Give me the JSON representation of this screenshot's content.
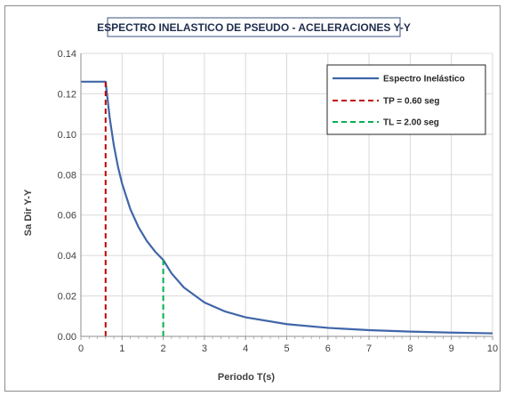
{
  "chart_data": {
    "type": "line",
    "title": "ESPECTRO INELASTICO DE PSEUDO - ACELERACIONES Y-Y",
    "xlabel": "Periodo T(s)",
    "ylabel": "Sa Dir Y-Y",
    "xlim": [
      0,
      10
    ],
    "ylim": [
      0,
      0.14
    ],
    "x_ticks": [
      "0",
      "1",
      "2",
      "3",
      "4",
      "5",
      "6",
      "7",
      "8",
      "9",
      "10"
    ],
    "y_ticks": [
      "0.00",
      "0.02",
      "0.04",
      "0.06",
      "0.08",
      "0.10",
      "0.12",
      "0.14"
    ],
    "grid": true,
    "legend_position": "top-right",
    "series": [
      {
        "name": "Espectro Inelástico",
        "color": "#4066a8",
        "style": "solid",
        "x": [
          0,
          0.6,
          0.7,
          0.8,
          0.9,
          1.0,
          1.2,
          1.4,
          1.6,
          1.8,
          2.0,
          2.2,
          2.5,
          3.0,
          3.5,
          4.0,
          5.0,
          6.0,
          7.0,
          8.0,
          9.0,
          10.0
        ],
        "y": [
          0.126,
          0.126,
          0.108,
          0.0945,
          0.084,
          0.0756,
          0.063,
          0.054,
          0.04725,
          0.042,
          0.0378,
          0.03124,
          0.0242,
          0.0168,
          0.01234,
          0.00945,
          0.00605,
          0.0042,
          0.00309,
          0.00236,
          0.00187,
          0.00151
        ]
      },
      {
        "name": "TP = 0.60 seg",
        "color": "#c00000",
        "style": "dashed",
        "x": [
          0.6,
          0.6
        ],
        "y": [
          0,
          0.126
        ]
      },
      {
        "name": "TL = 2.00 seg",
        "color": "#00b050",
        "style": "dashed",
        "x": [
          2.0,
          2.0
        ],
        "y": [
          0,
          0.0378
        ]
      }
    ]
  }
}
